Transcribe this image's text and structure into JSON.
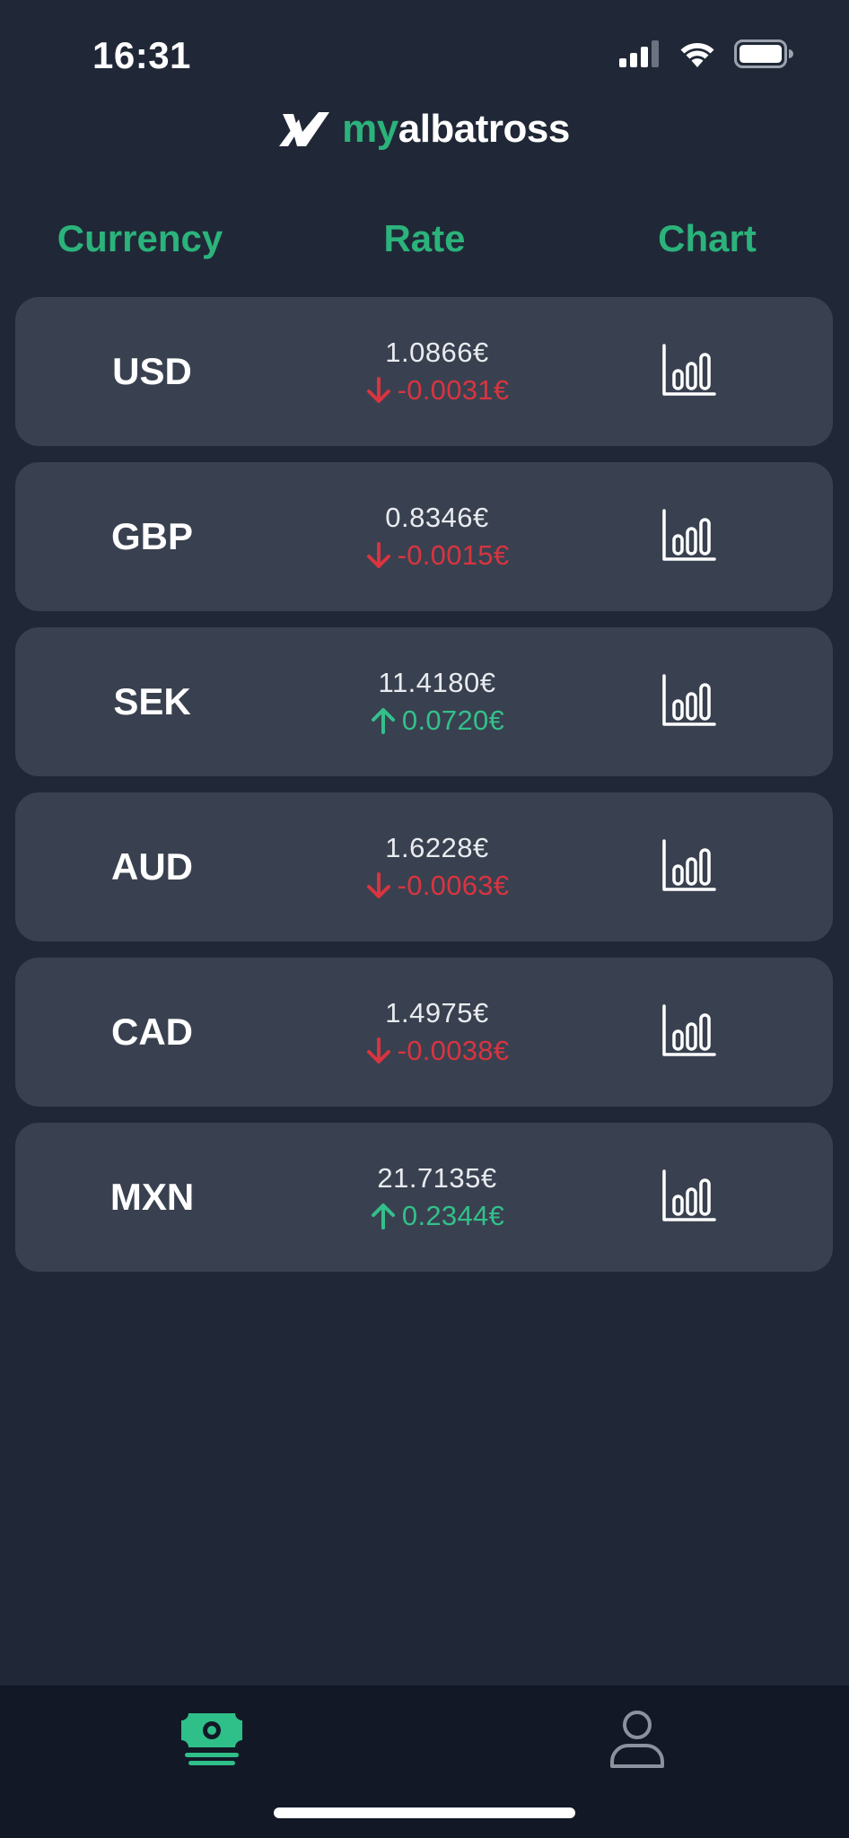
{
  "status_bar": {
    "time": "16:31",
    "icons": [
      "cellular-signal-icon",
      "wifi-icon",
      "battery-icon"
    ]
  },
  "header": {
    "logo_icon": "albatross-logo-icon",
    "logo_prefix": "my",
    "logo_suffix": "albatross"
  },
  "columns": {
    "currency": "Currency",
    "rate": "Rate",
    "chart": "Chart"
  },
  "colors": {
    "accent": "#2bb37b",
    "negative": "#d9343f",
    "positive": "#33c08a",
    "background": "#202837",
    "card": "#394150",
    "nav_background": "#121826"
  },
  "rates": [
    {
      "code": "USD",
      "rate": "1.0866€",
      "change": "-0.0031€",
      "direction": "down"
    },
    {
      "code": "GBP",
      "rate": "0.8346€",
      "change": "-0.0015€",
      "direction": "down"
    },
    {
      "code": "SEK",
      "rate": "11.4180€",
      "change": "0.0720€",
      "direction": "up"
    },
    {
      "code": "AUD",
      "rate": "1.6228€",
      "change": "-0.0063€",
      "direction": "down"
    },
    {
      "code": "CAD",
      "rate": "1.4975€",
      "change": "-0.0038€",
      "direction": "down"
    },
    {
      "code": "MXN",
      "rate": "21.7135€",
      "change": "0.2344€",
      "direction": "up"
    }
  ],
  "bottom_nav": {
    "items": [
      {
        "name": "rates",
        "icon": "money-icon",
        "active": true
      },
      {
        "name": "profile",
        "icon": "user-icon",
        "active": false
      }
    ]
  }
}
